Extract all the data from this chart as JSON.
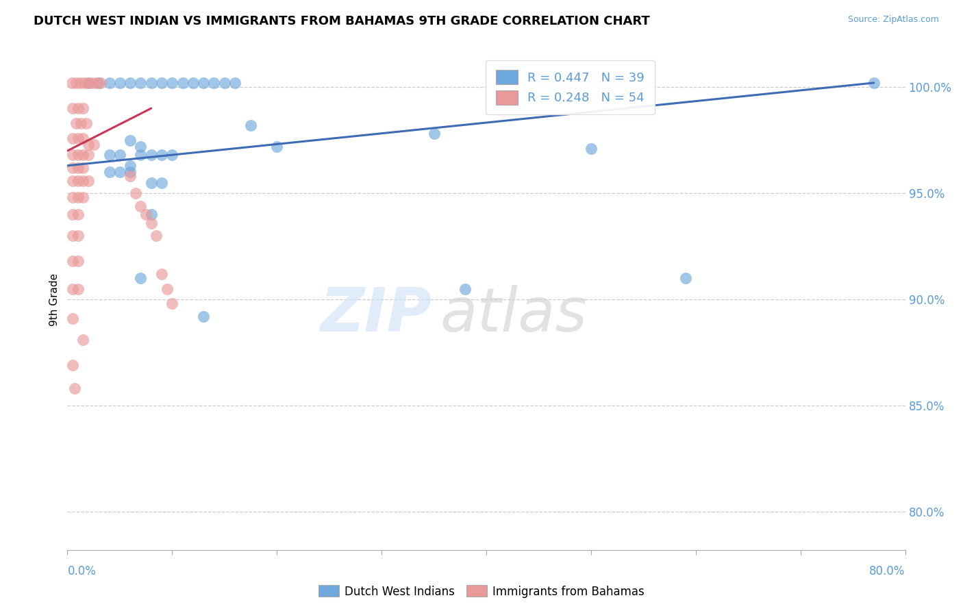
{
  "title": "DUTCH WEST INDIAN VS IMMIGRANTS FROM BAHAMAS 9TH GRADE CORRELATION CHART",
  "source": "Source: ZipAtlas.com",
  "ylabel": "9th Grade",
  "ytick_labels": [
    "80.0%",
    "85.0%",
    "90.0%",
    "95.0%",
    "100.0%"
  ],
  "ytick_values": [
    0.8,
    0.85,
    0.9,
    0.95,
    1.0
  ],
  "xmin": 0.0,
  "xmax": 0.8,
  "ymin": 0.782,
  "ymax": 1.018,
  "legend_blue_label": "Dutch West Indians",
  "legend_pink_label": "Immigrants from Bahamas",
  "R_blue": 0.447,
  "N_blue": 39,
  "R_pink": 0.248,
  "N_pink": 54,
  "blue_color": "#6fa8dc",
  "pink_color": "#ea9999",
  "blue_line_color": "#3d6bb5",
  "pink_line_color": "#cc3355",
  "blue_line_x": [
    0.0,
    0.77
  ],
  "blue_line_y": [
    0.963,
    1.002
  ],
  "pink_line_x": [
    0.0,
    0.08
  ],
  "pink_line_y": [
    0.97,
    0.99
  ],
  "blue_points": [
    [
      0.02,
      1.002
    ],
    [
      0.03,
      1.002
    ],
    [
      0.04,
      1.002
    ],
    [
      0.05,
      1.002
    ],
    [
      0.06,
      1.002
    ],
    [
      0.07,
      1.002
    ],
    [
      0.08,
      1.002
    ],
    [
      0.09,
      1.002
    ],
    [
      0.1,
      1.002
    ],
    [
      0.11,
      1.002
    ],
    [
      0.12,
      1.002
    ],
    [
      0.13,
      1.002
    ],
    [
      0.14,
      1.002
    ],
    [
      0.15,
      1.002
    ],
    [
      0.16,
      1.002
    ],
    [
      0.175,
      0.982
    ],
    [
      0.2,
      0.972
    ],
    [
      0.06,
      0.975
    ],
    [
      0.07,
      0.972
    ],
    [
      0.08,
      0.968
    ],
    [
      0.09,
      0.968
    ],
    [
      0.1,
      0.968
    ],
    [
      0.04,
      0.96
    ],
    [
      0.05,
      0.96
    ],
    [
      0.08,
      0.955
    ],
    [
      0.09,
      0.955
    ],
    [
      0.07,
      0.968
    ],
    [
      0.06,
      0.96
    ],
    [
      0.07,
      0.91
    ],
    [
      0.13,
      0.892
    ],
    [
      0.35,
      0.978
    ],
    [
      0.5,
      0.971
    ],
    [
      0.38,
      0.905
    ],
    [
      0.59,
      0.91
    ],
    [
      0.77,
      1.002
    ],
    [
      0.06,
      0.963
    ],
    [
      0.08,
      0.94
    ],
    [
      0.04,
      0.968
    ],
    [
      0.05,
      0.968
    ]
  ],
  "pink_points": [
    [
      0.004,
      1.002
    ],
    [
      0.008,
      1.002
    ],
    [
      0.012,
      1.002
    ],
    [
      0.016,
      1.002
    ],
    [
      0.02,
      1.002
    ],
    [
      0.024,
      1.002
    ],
    [
      0.028,
      1.002
    ],
    [
      0.032,
      1.002
    ],
    [
      0.005,
      0.99
    ],
    [
      0.01,
      0.99
    ],
    [
      0.015,
      0.99
    ],
    [
      0.008,
      0.983
    ],
    [
      0.013,
      0.983
    ],
    [
      0.018,
      0.983
    ],
    [
      0.005,
      0.976
    ],
    [
      0.01,
      0.976
    ],
    [
      0.015,
      0.976
    ],
    [
      0.02,
      0.973
    ],
    [
      0.025,
      0.973
    ],
    [
      0.005,
      0.968
    ],
    [
      0.01,
      0.968
    ],
    [
      0.015,
      0.968
    ],
    [
      0.02,
      0.968
    ],
    [
      0.005,
      0.962
    ],
    [
      0.01,
      0.962
    ],
    [
      0.015,
      0.962
    ],
    [
      0.005,
      0.956
    ],
    [
      0.01,
      0.956
    ],
    [
      0.015,
      0.956
    ],
    [
      0.02,
      0.956
    ],
    [
      0.005,
      0.948
    ],
    [
      0.01,
      0.948
    ],
    [
      0.015,
      0.948
    ],
    [
      0.005,
      0.94
    ],
    [
      0.01,
      0.94
    ],
    [
      0.005,
      0.93
    ],
    [
      0.01,
      0.93
    ],
    [
      0.005,
      0.918
    ],
    [
      0.01,
      0.918
    ],
    [
      0.005,
      0.905
    ],
    [
      0.01,
      0.905
    ],
    [
      0.005,
      0.891
    ],
    [
      0.015,
      0.881
    ],
    [
      0.005,
      0.869
    ],
    [
      0.007,
      0.858
    ],
    [
      0.06,
      0.958
    ],
    [
      0.065,
      0.95
    ],
    [
      0.07,
      0.944
    ],
    [
      0.075,
      0.94
    ],
    [
      0.08,
      0.936
    ],
    [
      0.085,
      0.93
    ],
    [
      0.09,
      0.912
    ],
    [
      0.095,
      0.905
    ],
    [
      0.1,
      0.898
    ]
  ]
}
